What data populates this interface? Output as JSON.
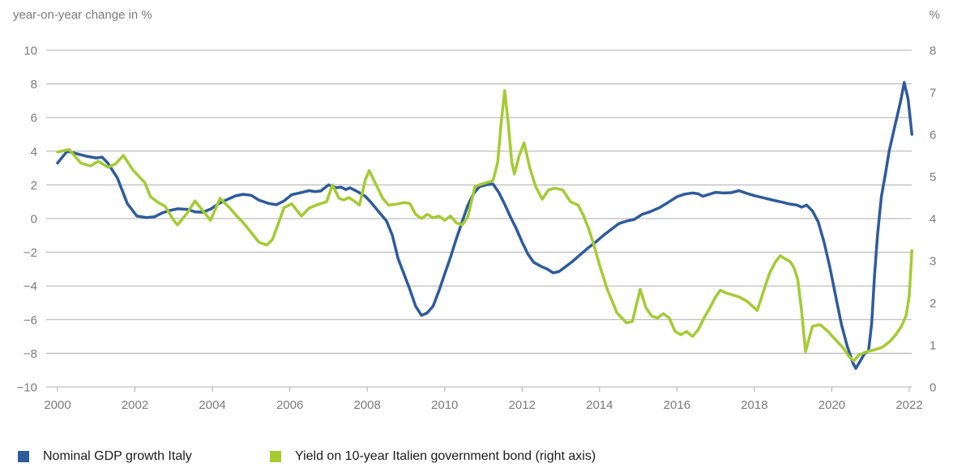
{
  "header": {
    "left_axis_title": "year-on-year change in %",
    "right_axis_title": "%"
  },
  "colors": {
    "gdp_line": "#2E5B9C",
    "yield_line": "#A4CB32",
    "gridline": "#ADADAD",
    "axis_text": "#7B7B7B",
    "legend_text": "#1A1A1A"
  },
  "legend": {
    "items": [
      {
        "label": "Nominal GDP growth Italy",
        "color": "#2E5B9C",
        "swatch": "square-icon"
      },
      {
        "label": "Yield on 10-year Italien government bond (right axis)",
        "color": "#A4CB32",
        "swatch": "square-icon"
      }
    ]
  },
  "chart_data": {
    "type": "line",
    "title": "",
    "left_axis": {
      "label": "year-on-year change in %",
      "min": -10,
      "max": 10,
      "tick_step": 2,
      "ticks": [
        10,
        8,
        6,
        4,
        2,
        0,
        -2,
        -4,
        -6,
        -8,
        -10
      ]
    },
    "right_axis": {
      "label": "%",
      "min": 0,
      "max": 8,
      "tick_step": 1,
      "ticks": [
        8,
        7,
        6,
        5,
        4,
        3,
        2,
        1,
        0
      ]
    },
    "x_axis": {
      "min": 2000,
      "max": 2022,
      "tick_step": 2,
      "ticks": [
        2000,
        2002,
        2004,
        2006,
        2008,
        2010,
        2012,
        2014,
        2016,
        2018,
        2020,
        2022
      ]
    },
    "grid": true,
    "legend_position": "bottom",
    "series": [
      {
        "name": "Nominal GDP growth Italy",
        "axis": "left",
        "color": "#2E5B9C",
        "points": [
          [
            2000.0,
            3.3
          ],
          [
            2000.25,
            4.0
          ],
          [
            2000.5,
            3.85
          ],
          [
            2000.75,
            3.7
          ],
          [
            2001.0,
            3.6
          ],
          [
            2001.15,
            3.65
          ],
          [
            2001.3,
            3.3
          ],
          [
            2001.55,
            2.4
          ],
          [
            2001.8,
            0.9
          ],
          [
            2002.05,
            0.15
          ],
          [
            2002.3,
            0.06
          ],
          [
            2002.5,
            0.1
          ],
          [
            2002.7,
            0.33
          ],
          [
            2002.9,
            0.48
          ],
          [
            2003.1,
            0.58
          ],
          [
            2003.35,
            0.55
          ],
          [
            2003.55,
            0.4
          ],
          [
            2003.75,
            0.38
          ],
          [
            2003.95,
            0.56
          ],
          [
            2004.15,
            0.87
          ],
          [
            2004.4,
            1.15
          ],
          [
            2004.6,
            1.35
          ],
          [
            2004.8,
            1.44
          ],
          [
            2005.0,
            1.38
          ],
          [
            2005.2,
            1.1
          ],
          [
            2005.45,
            0.9
          ],
          [
            2005.65,
            0.82
          ],
          [
            2005.85,
            1.05
          ],
          [
            2006.05,
            1.42
          ],
          [
            2006.3,
            1.55
          ],
          [
            2006.5,
            1.66
          ],
          [
            2006.65,
            1.6
          ],
          [
            2006.8,
            1.64
          ],
          [
            2007.0,
            2.0
          ],
          [
            2007.2,
            1.83
          ],
          [
            2007.33,
            1.86
          ],
          [
            2007.45,
            1.72
          ],
          [
            2007.55,
            1.83
          ],
          [
            2007.75,
            1.6
          ],
          [
            2007.95,
            1.32
          ],
          [
            2008.1,
            0.95
          ],
          [
            2008.3,
            0.4
          ],
          [
            2008.5,
            -0.15
          ],
          [
            2008.65,
            -1.0
          ],
          [
            2008.8,
            -2.4
          ],
          [
            2008.95,
            -3.3
          ],
          [
            2009.1,
            -4.2
          ],
          [
            2009.25,
            -5.2
          ],
          [
            2009.4,
            -5.75
          ],
          [
            2009.55,
            -5.6
          ],
          [
            2009.7,
            -5.2
          ],
          [
            2009.85,
            -4.3
          ],
          [
            2010.0,
            -3.3
          ],
          [
            2010.15,
            -2.3
          ],
          [
            2010.3,
            -1.2
          ],
          [
            2010.45,
            -0.2
          ],
          [
            2010.6,
            0.8
          ],
          [
            2010.75,
            1.5
          ],
          [
            2010.9,
            1.9
          ],
          [
            2011.1,
            2.02
          ],
          [
            2011.25,
            2.05
          ],
          [
            2011.4,
            1.55
          ],
          [
            2011.55,
            0.85
          ],
          [
            2011.7,
            0.1
          ],
          [
            2011.85,
            -0.6
          ],
          [
            2012.0,
            -1.4
          ],
          [
            2012.15,
            -2.1
          ],
          [
            2012.3,
            -2.6
          ],
          [
            2012.5,
            -2.85
          ],
          [
            2012.65,
            -3.0
          ],
          [
            2012.8,
            -3.22
          ],
          [
            2012.95,
            -3.15
          ],
          [
            2013.1,
            -2.9
          ],
          [
            2013.3,
            -2.55
          ],
          [
            2013.5,
            -2.15
          ],
          [
            2013.7,
            -1.75
          ],
          [
            2013.9,
            -1.4
          ],
          [
            2014.1,
            -1.0
          ],
          [
            2014.3,
            -0.65
          ],
          [
            2014.5,
            -0.3
          ],
          [
            2014.7,
            -0.15
          ],
          [
            2014.9,
            -0.05
          ],
          [
            2015.1,
            0.25
          ],
          [
            2015.3,
            0.4
          ],
          [
            2015.55,
            0.65
          ],
          [
            2015.8,
            1.0
          ],
          [
            2016.0,
            1.3
          ],
          [
            2016.2,
            1.45
          ],
          [
            2016.4,
            1.52
          ],
          [
            2016.55,
            1.47
          ],
          [
            2016.67,
            1.32
          ],
          [
            2016.8,
            1.42
          ],
          [
            2017.0,
            1.56
          ],
          [
            2017.2,
            1.52
          ],
          [
            2017.4,
            1.54
          ],
          [
            2017.6,
            1.66
          ],
          [
            2017.8,
            1.5
          ],
          [
            2018.0,
            1.36
          ],
          [
            2018.25,
            1.22
          ],
          [
            2018.5,
            1.08
          ],
          [
            2018.7,
            0.98
          ],
          [
            2018.9,
            0.87
          ],
          [
            2019.1,
            0.8
          ],
          [
            2019.22,
            0.68
          ],
          [
            2019.35,
            0.8
          ],
          [
            2019.5,
            0.45
          ],
          [
            2019.65,
            -0.2
          ],
          [
            2019.8,
            -1.4
          ],
          [
            2019.95,
            -2.9
          ],
          [
            2020.1,
            -4.6
          ],
          [
            2020.25,
            -6.3
          ],
          [
            2020.4,
            -7.6
          ],
          [
            2020.55,
            -8.6
          ],
          [
            2020.62,
            -8.9
          ],
          [
            2020.75,
            -8.4
          ],
          [
            2020.85,
            -8.0
          ],
          [
            2020.95,
            -7.85
          ],
          [
            2021.03,
            -6.2
          ],
          [
            2021.1,
            -3.5
          ],
          [
            2021.18,
            -1.0
          ],
          [
            2021.28,
            1.3
          ],
          [
            2021.38,
            2.6
          ],
          [
            2021.48,
            4.0
          ],
          [
            2021.58,
            5.0
          ],
          [
            2021.68,
            6.0
          ],
          [
            2021.78,
            7.0
          ],
          [
            2021.87,
            8.08
          ],
          [
            2021.97,
            7.1
          ],
          [
            2022.07,
            5.0
          ]
        ]
      },
      {
        "name": "Yield on 10-year Italien government bond (right axis)",
        "axis": "right",
        "color": "#A4CB32",
        "points": [
          [
            2000.0,
            5.58
          ],
          [
            2000.3,
            5.64
          ],
          [
            2000.6,
            5.32
          ],
          [
            2000.85,
            5.25
          ],
          [
            2001.05,
            5.36
          ],
          [
            2001.3,
            5.22
          ],
          [
            2001.5,
            5.3
          ],
          [
            2001.7,
            5.5
          ],
          [
            2001.95,
            5.15
          ],
          [
            2002.25,
            4.86
          ],
          [
            2002.4,
            4.52
          ],
          [
            2002.6,
            4.38
          ],
          [
            2002.78,
            4.29
          ],
          [
            2003.0,
            3.96
          ],
          [
            2003.1,
            3.85
          ],
          [
            2003.35,
            4.13
          ],
          [
            2003.55,
            4.42
          ],
          [
            2003.75,
            4.19
          ],
          [
            2003.95,
            3.96
          ],
          [
            2004.2,
            4.48
          ],
          [
            2004.45,
            4.25
          ],
          [
            2004.65,
            4.04
          ],
          [
            2004.8,
            3.9
          ],
          [
            2005.0,
            3.67
          ],
          [
            2005.2,
            3.44
          ],
          [
            2005.4,
            3.37
          ],
          [
            2005.55,
            3.5
          ],
          [
            2005.68,
            3.82
          ],
          [
            2005.85,
            4.26
          ],
          [
            2006.05,
            4.35
          ],
          [
            2006.3,
            4.06
          ],
          [
            2006.5,
            4.25
          ],
          [
            2006.75,
            4.34
          ],
          [
            2006.95,
            4.4
          ],
          [
            2007.1,
            4.8
          ],
          [
            2007.27,
            4.48
          ],
          [
            2007.4,
            4.44
          ],
          [
            2007.52,
            4.5
          ],
          [
            2007.66,
            4.42
          ],
          [
            2007.8,
            4.32
          ],
          [
            2007.95,
            4.92
          ],
          [
            2008.05,
            5.14
          ],
          [
            2008.2,
            4.86
          ],
          [
            2008.4,
            4.48
          ],
          [
            2008.55,
            4.32
          ],
          [
            2008.75,
            4.34
          ],
          [
            2008.95,
            4.38
          ],
          [
            2009.1,
            4.36
          ],
          [
            2009.25,
            4.1
          ],
          [
            2009.4,
            4.0
          ],
          [
            2009.55,
            4.1
          ],
          [
            2009.7,
            4.02
          ],
          [
            2009.85,
            4.06
          ],
          [
            2010.0,
            3.96
          ],
          [
            2010.15,
            4.06
          ],
          [
            2010.3,
            3.9
          ],
          [
            2010.45,
            3.85
          ],
          [
            2010.6,
            4.04
          ],
          [
            2010.78,
            4.76
          ],
          [
            2010.95,
            4.82
          ],
          [
            2011.1,
            4.86
          ],
          [
            2011.25,
            4.9
          ],
          [
            2011.37,
            5.34
          ],
          [
            2011.46,
            6.28
          ],
          [
            2011.55,
            7.04
          ],
          [
            2011.64,
            6.28
          ],
          [
            2011.73,
            5.36
          ],
          [
            2011.8,
            5.06
          ],
          [
            2011.92,
            5.48
          ],
          [
            2012.05,
            5.8
          ],
          [
            2012.2,
            5.2
          ],
          [
            2012.35,
            4.76
          ],
          [
            2012.52,
            4.46
          ],
          [
            2012.68,
            4.68
          ],
          [
            2012.85,
            4.72
          ],
          [
            2013.05,
            4.68
          ],
          [
            2013.25,
            4.4
          ],
          [
            2013.45,
            4.32
          ],
          [
            2013.58,
            4.08
          ],
          [
            2013.72,
            3.76
          ],
          [
            2013.86,
            3.36
          ],
          [
            2014.0,
            2.9
          ],
          [
            2014.2,
            2.32
          ],
          [
            2014.45,
            1.76
          ],
          [
            2014.7,
            1.52
          ],
          [
            2014.85,
            1.56
          ],
          [
            2015.05,
            2.32
          ],
          [
            2015.2,
            1.88
          ],
          [
            2015.35,
            1.68
          ],
          [
            2015.5,
            1.64
          ],
          [
            2015.65,
            1.74
          ],
          [
            2015.8,
            1.64
          ],
          [
            2015.95,
            1.32
          ],
          [
            2016.1,
            1.24
          ],
          [
            2016.25,
            1.32
          ],
          [
            2016.4,
            1.2
          ],
          [
            2016.55,
            1.36
          ],
          [
            2016.7,
            1.64
          ],
          [
            2016.85,
            1.88
          ],
          [
            2017.0,
            2.14
          ],
          [
            2017.12,
            2.3
          ],
          [
            2017.25,
            2.24
          ],
          [
            2017.45,
            2.18
          ],
          [
            2017.6,
            2.14
          ],
          [
            2017.8,
            2.04
          ],
          [
            2017.95,
            1.92
          ],
          [
            2018.07,
            1.82
          ],
          [
            2018.17,
            2.08
          ],
          [
            2018.28,
            2.4
          ],
          [
            2018.4,
            2.72
          ],
          [
            2018.55,
            2.98
          ],
          [
            2018.67,
            3.12
          ],
          [
            2018.8,
            3.04
          ],
          [
            2018.92,
            2.98
          ],
          [
            2019.02,
            2.84
          ],
          [
            2019.12,
            2.56
          ],
          [
            2019.22,
            1.8
          ],
          [
            2019.32,
            0.84
          ],
          [
            2019.5,
            1.44
          ],
          [
            2019.7,
            1.48
          ],
          [
            2019.9,
            1.32
          ],
          [
            2020.1,
            1.12
          ],
          [
            2020.3,
            0.92
          ],
          [
            2020.45,
            0.72
          ],
          [
            2020.57,
            0.62
          ],
          [
            2020.7,
            0.76
          ],
          [
            2020.9,
            0.84
          ],
          [
            2021.1,
            0.88
          ],
          [
            2021.3,
            0.94
          ],
          [
            2021.5,
            1.08
          ],
          [
            2021.65,
            1.24
          ],
          [
            2021.8,
            1.44
          ],
          [
            2021.92,
            1.7
          ],
          [
            2022.0,
            2.16
          ],
          [
            2022.07,
            3.24
          ]
        ]
      }
    ]
  }
}
